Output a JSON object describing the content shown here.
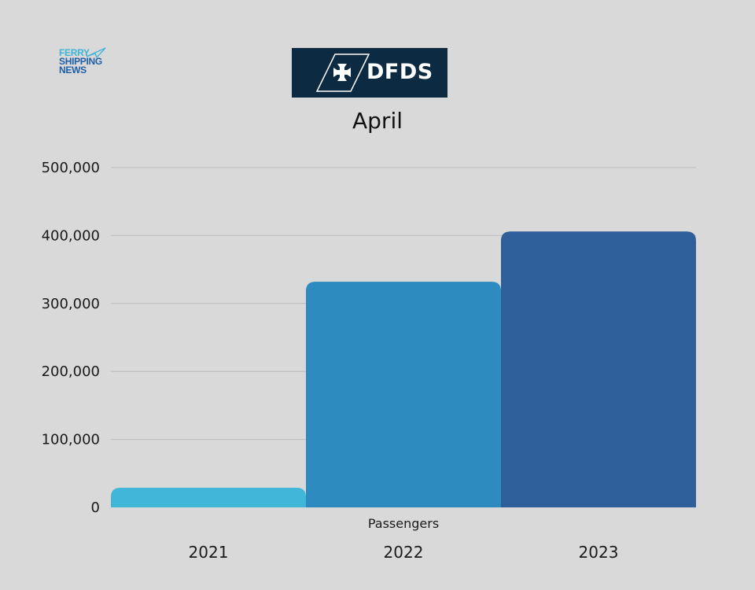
{
  "publisher_logo": {
    "line1": "FERRY",
    "line2": "SHIPPING",
    "line3": "NEWS"
  },
  "brand_logo": {
    "text": "DFDS"
  },
  "chart_data": {
    "type": "bar",
    "title": "April",
    "categories": [
      "2021",
      "2022",
      "2023"
    ],
    "series": [
      {
        "name": "Passengers",
        "values": [
          29000,
          332000,
          406000
        ]
      }
    ],
    "ylim": [
      0,
      500000
    ],
    "yticks": [
      "0",
      "100,000",
      "200,000",
      "300,000",
      "400,000",
      "500,000"
    ],
    "ytick_values": [
      0,
      100000,
      200000,
      300000,
      400000,
      500000
    ],
    "grid": true,
    "colors": [
      "#41b6d9",
      "#2e8bbf",
      "#2f5f9a"
    ],
    "xlabel": "",
    "ylabel": ""
  }
}
